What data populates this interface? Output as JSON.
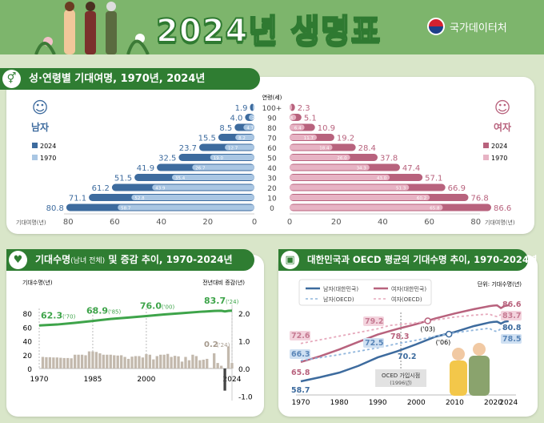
{
  "header": {
    "title": "2024년 생명표",
    "agency": "국가데이터처"
  },
  "colors": {
    "green": "#2f7d32",
    "male2024": "#3d6b9e",
    "male1970": "#a9c6e3",
    "female2024": "#b8627d",
    "female1970": "#e7b3c4",
    "bar": "#c3b9ad",
    "line": "#3ea44a"
  },
  "chart_data": [
    {
      "type": "bar",
      "title": "성·연령별 기대여명, 1970년, 2024년",
      "age_label": "연령(세)",
      "xlabel": "기대여명(년)",
      "categories": [
        "100+",
        "90",
        "80",
        "70",
        "60",
        "50",
        "40",
        "30",
        "20",
        "10",
        "0"
      ],
      "male_label": "남자",
      "female_label": "여자",
      "legend": [
        "2024",
        "1970"
      ],
      "xticks": [
        80,
        60,
        40,
        20,
        0
      ],
      "series": [
        {
          "name": "남자 2024",
          "values": [
            1.9,
            4.0,
            8.5,
            15.5,
            23.7,
            32.5,
            41.9,
            51.5,
            61.2,
            71.1,
            80.8
          ]
        },
        {
          "name": "남자 1970",
          "values": [
            0.7,
            2.4,
            4.7,
            8.2,
            12.7,
            19.0,
            26.7,
            35.4,
            43.9,
            52.8,
            58.7
          ]
        },
        {
          "name": "여자 2024",
          "values": [
            2.3,
            5.1,
            10.9,
            19.2,
            28.4,
            37.8,
            47.4,
            57.1,
            66.9,
            76.8,
            86.6
          ]
        },
        {
          "name": "여자 1970",
          "values": [
            1.0,
            2.8,
            6.4,
            11.7,
            18.4,
            26.0,
            34.3,
            43.0,
            51.3,
            60.2,
            65.8
          ]
        }
      ]
    },
    {
      "type": "bar+line",
      "title": "기대수명",
      "title_sub": "(남녀 전체)",
      "title_rest": "및 증감 추이, 1970-2024년",
      "ylabel_left": "기대수명(년)",
      "ylabel_right": "전년대비 증감(년)",
      "yticks_left": [
        80,
        60,
        40,
        20,
        0
      ],
      "yticks_right": [
        "2.0",
        "1.0",
        "0.0",
        "-1.0"
      ],
      "xticks": [
        "1970",
        "1985",
        "2000",
        "2024"
      ],
      "line": {
        "x": [
          1970,
          1975,
          1980,
          1985,
          1990,
          1995,
          2000,
          2005,
          2010,
          2015,
          2019,
          2020,
          2021,
          2022,
          2023,
          2024
        ],
        "values": [
          62.3,
          63.7,
          66.1,
          68.9,
          71.7,
          73.8,
          76.0,
          78.2,
          80.2,
          82.1,
          83.3,
          83.5,
          83.6,
          82.7,
          83.5,
          83.7
        ]
      },
      "annotations": [
        {
          "year": 1970,
          "text": "62.3",
          "sub": "('70)"
        },
        {
          "year": 1985,
          "text": "68.9",
          "sub": "('85)"
        },
        {
          "year": 2000,
          "text": "76.0",
          "sub": "('00)"
        },
        {
          "year": 2024,
          "text": "83.7",
          "sub": "('24)"
        }
      ],
      "bar_annotation": {
        "text": "0.2",
        "sub": "('24)"
      },
      "increments": {
        "start": 1971,
        "values": [
          0.42,
          0.41,
          0.41,
          0.4,
          0.4,
          0.39,
          0.38,
          0.38,
          0.37,
          0.5,
          0.5,
          0.5,
          0.48,
          0.62,
          0.62,
          0.6,
          0.55,
          0.5,
          0.5,
          0.5,
          0.48,
          0.47,
          0.48,
          0.42,
          0.35,
          0.43,
          0.45,
          0.45,
          0.4,
          0.52,
          0.5,
          0.33,
          0.45,
          0.5,
          0.5,
          0.53,
          0.42,
          0.46,
          0.44,
          0.25,
          0.42,
          0.3,
          0.5,
          0.45,
          0.3,
          0.32,
          0.35,
          0.02,
          0.55,
          0.2,
          0.1,
          -0.8,
          0.8,
          0.2
        ]
      }
    },
    {
      "type": "line",
      "title": "대한민국과 OECD 평균의 기대수명 추이, 1970-2024년",
      "unit": "단위: 기대수명(년)",
      "xticks": [
        "1970",
        "1980",
        "1990",
        "2000",
        "2010",
        "2020",
        "2024"
      ],
      "series": [
        {
          "name": "남자(대한민국)",
          "x": [
            1970,
            1975,
            1980,
            1985,
            1990,
            1995,
            2000,
            2005,
            2010,
            2015,
            2019,
            2020,
            2021,
            2022,
            2023,
            2024
          ],
          "values": [
            58.7,
            60.2,
            61.9,
            64.4,
            67.5,
            69.7,
            72.3,
            75.1,
            76.8,
            79.0,
            80.3,
            80.5,
            80.6,
            79.9,
            80.6,
            80.8
          ]
        },
        {
          "name": "여자(대한민국)",
          "x": [
            1970,
            1975,
            1980,
            1985,
            1990,
            1995,
            2000,
            2005,
            2010,
            2015,
            2019,
            2020,
            2021,
            2022,
            2023,
            2024
          ],
          "values": [
            65.8,
            67.9,
            70.4,
            73.2,
            75.9,
            77.9,
            79.7,
            81.8,
            83.6,
            85.2,
            86.3,
            86.5,
            86.6,
            85.6,
            86.4,
            86.6
          ]
        },
        {
          "name": "남자(OECD)",
          "x": [
            1970,
            1980,
            1990,
            1995,
            2000,
            2006,
            2010,
            2015,
            2019,
            2020,
            2021,
            2022,
            2024
          ],
          "values": [
            66.3,
            68.5,
            71.0,
            72.5,
            73.8,
            75.5,
            76.5,
            77.5,
            78.2,
            77.3,
            77.0,
            78.0,
            78.5
          ]
        },
        {
          "name": "여자(OECD)",
          "x": [
            1970,
            1980,
            1990,
            1993,
            2000,
            2003,
            2010,
            2015,
            2019,
            2020,
            2021,
            2022,
            2024
          ],
          "values": [
            72.6,
            75.3,
            78.0,
            79.2,
            80.2,
            80.8,
            82.3,
            83.0,
            83.4,
            82.8,
            82.5,
            83.2,
            83.7
          ]
        }
      ],
      "labels": {
        "m_kr_1970": "58.7",
        "f_kr_1970": "65.8",
        "m_oecd_1970": "66.3",
        "f_oecd_1970": "72.6",
        "m_oecd_mid": "72.5",
        "f_oecd_mid": "79.2",
        "m_kr_mid": "70.2",
        "f_kr_mid": "78.3",
        "m_kr_end": "80.8",
        "f_kr_end": "86.6",
        "m_oecd_end": "78.5",
        "f_oecd_end": "83.7",
        "cross_f": "('03)",
        "cross_m": "('06)"
      },
      "oecd_join": {
        "label": "OCED 가입시점",
        "sub": "(1996년)",
        "year": 1996
      }
    }
  ]
}
